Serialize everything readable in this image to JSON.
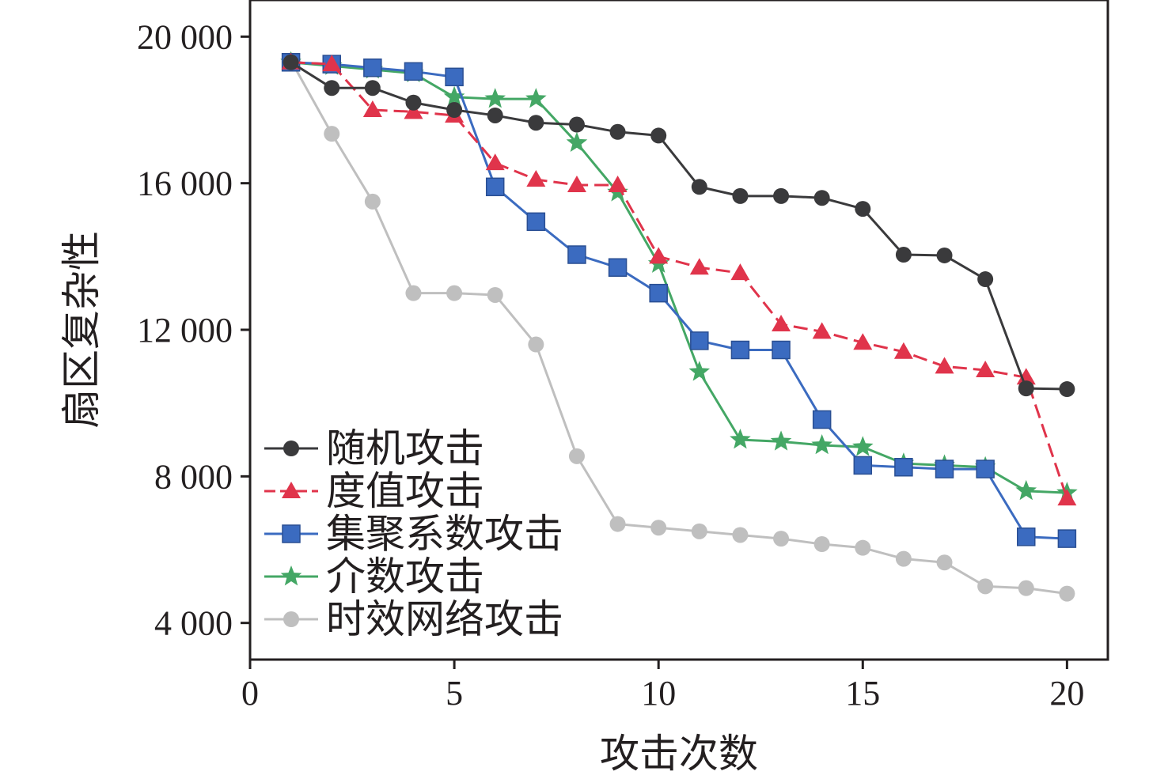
{
  "chart_data": {
    "type": "line",
    "xlabel": "攻击次数",
    "ylabel": "扇区复杂性",
    "xlim": [
      0,
      21
    ],
    "ylim": [
      3000,
      21000
    ],
    "xticks": [
      0,
      5,
      10,
      15,
      20
    ],
    "xtick_labels": [
      "0",
      "5",
      "10",
      "15",
      "20"
    ],
    "yticks": [
      4000,
      8000,
      12000,
      16000,
      20000
    ],
    "ytick_labels": [
      "4 000",
      "8 000",
      "12 000",
      "16 000",
      "20 000"
    ],
    "grid": false,
    "legend_position": "bottom-left",
    "x": [
      1,
      2,
      3,
      4,
      5,
      6,
      7,
      8,
      9,
      10,
      11,
      12,
      13,
      14,
      15,
      16,
      17,
      18,
      19,
      20
    ],
    "series": [
      {
        "name": "随机攻击",
        "color": "#3a3a3c",
        "marker": "circle",
        "dash": "solid",
        "values": [
          19300,
          18600,
          18600,
          18200,
          18000,
          17850,
          17650,
          17600,
          17400,
          17300,
          15900,
          15650,
          15650,
          15600,
          15300,
          14050,
          14030,
          13380,
          10400,
          10380
        ]
      },
      {
        "name": "度值攻击",
        "color": "#e0344b",
        "marker": "triangle",
        "dash": "dashed",
        "values": [
          19300,
          19250,
          18000,
          17950,
          17850,
          16550,
          16100,
          15950,
          15950,
          14000,
          13700,
          13550,
          12150,
          11950,
          11650,
          11400,
          11000,
          10900,
          10700,
          7400
        ]
      },
      {
        "name": "集聚系数攻击",
        "color": "#3b6bc0",
        "marker": "square",
        "dash": "solid",
        "values": [
          19300,
          19250,
          19150,
          19050,
          18900,
          15900,
          14950,
          14050,
          13700,
          13000,
          11700,
          11450,
          11450,
          9550,
          8300,
          8250,
          8200,
          8200,
          6350,
          6300
        ]
      },
      {
        "name": "介数攻击",
        "color": "#44a765",
        "marker": "star",
        "dash": "solid",
        "values": [
          19300,
          19200,
          19100,
          19000,
          18350,
          18300,
          18300,
          17100,
          15750,
          13800,
          10850,
          9000,
          8950,
          8850,
          8800,
          8350,
          8300,
          8250,
          7600,
          7550
        ]
      },
      {
        "name": "时效网络攻击",
        "color": "#bfbfbf",
        "marker": "circle",
        "dash": "solid",
        "values": [
          19350,
          17350,
          15500,
          13000,
          13000,
          12950,
          11600,
          8550,
          6700,
          6600,
          6500,
          6400,
          6300,
          6150,
          6050,
          5750,
          5650,
          5000,
          4950,
          4800
        ]
      }
    ]
  }
}
